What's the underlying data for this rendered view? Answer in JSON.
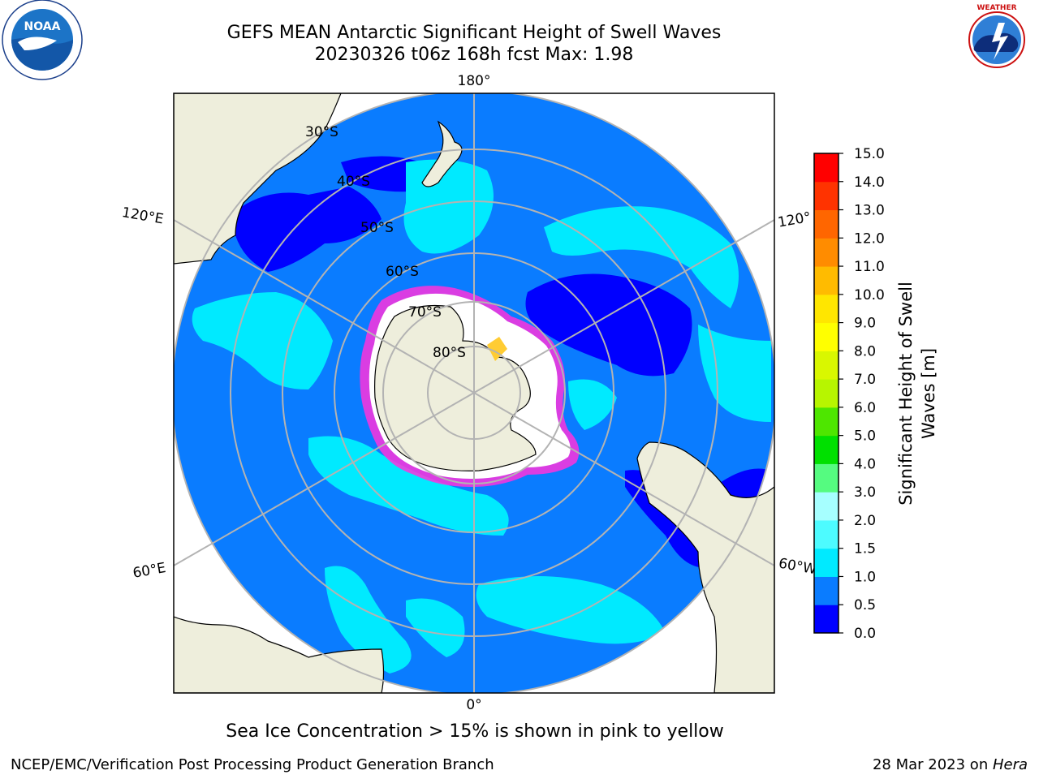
{
  "title": {
    "line1": "GEFS MEAN Antarctic Significant Height of Swell Waves",
    "line2": "20230326 t06z 168h fcst   Max: 1.98"
  },
  "map": {
    "projection": "south-polar stereographic",
    "longitude_labels": {
      "top": "180°",
      "bottom": "0°",
      "left_upper": "120°E",
      "left_lower": "60°E",
      "right_upper": "120°",
      "right_lower": "60°W"
    },
    "latitude_labels": [
      "30°S",
      "40°S",
      "50°S",
      "60°S",
      "70°S",
      "80°S"
    ],
    "colors": {
      "land": "#eeeedc",
      "ocean_base": "#0a7cff",
      "swell_low": "#0000ff",
      "swell_mid": "#00eaff",
      "sea_ice_edge": "#ff33dd",
      "sea_ice_inner": "#ffcc33",
      "graticule": "#b3b3b3"
    }
  },
  "colorbar": {
    "label": "Significant Height of Swell Waves [m]",
    "ticks": [
      "0.0",
      "0.5",
      "1.0",
      "1.5",
      "2.0",
      "3.0",
      "4.0",
      "5.0",
      "6.0",
      "7.0",
      "8.0",
      "9.0",
      "10.0",
      "11.0",
      "12.0",
      "13.0",
      "14.0",
      "15.0"
    ],
    "colors": [
      "#0000ff",
      "#0a7cff",
      "#00eaff",
      "#4dfbff",
      "#a6ffff",
      "#55fb80",
      "#00e000",
      "#4ee600",
      "#b7f500",
      "#d9f700",
      "#ffff00",
      "#ffe600",
      "#ffbb00",
      "#ff8c00",
      "#ff6600",
      "#ff3300",
      "#ff0000"
    ]
  },
  "caption": "Sea Ice Concentration > 15% is shown in pink to yellow",
  "footer": {
    "left": "NCEP/EMC/Verification Post Processing Product Generation Branch",
    "right_date": "28 Mar 2023 on ",
    "right_host": "Hera"
  },
  "logos": {
    "left": "NOAA",
    "right": "NATIONAL WEATHER SERVICE"
  }
}
